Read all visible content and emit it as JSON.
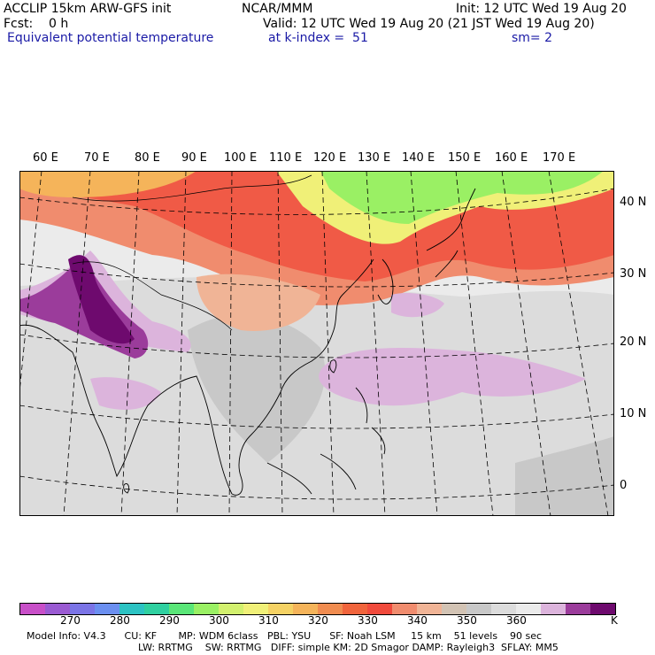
{
  "header": {
    "model": "ACCLIP 15km ARW-GFS init",
    "org": "NCAR/MMM",
    "init": "Init: 12 UTC Wed 19 Aug 20",
    "fcst": "Fcst:    0 h",
    "valid": "Valid: 12 UTC Wed 19 Aug 20 (21 JST Wed 19 Aug 20)",
    "field": "Equivalent potential temperature",
    "level": "at k-index =  51",
    "smooth": "sm= 2"
  },
  "map": {
    "lon_labels": [
      "60 E",
      "70 E",
      "80 E",
      "90 E",
      "100 E",
      "110 E",
      "120 E",
      "130 E",
      "140 E",
      "150 E",
      "160 E",
      "170 E"
    ],
    "lat_labels": [
      "40 N",
      "30 N",
      "20 N",
      "10 N",
      "0"
    ],
    "colors": {
      "frame": "#000000",
      "graticule": "#000000",
      "coast": "#000000"
    }
  },
  "colorbar": {
    "colors": [
      "#c84fc8",
      "#9a5ad2",
      "#7b74e6",
      "#6b8ff0",
      "#2cc3c3",
      "#2fd0a0",
      "#5ae678",
      "#9af064",
      "#d2f06e",
      "#f0f078",
      "#f5d264",
      "#f5b45a",
      "#f08c50",
      "#f0643c",
      "#f04a3c",
      "#f08c6e",
      "#f0b496",
      "#d2c3b4",
      "#c8c8c8",
      "#dcdcdc",
      "#ebebeb",
      "#dcb4dc",
      "#9b3c9b",
      "#6e0a6e"
    ],
    "tick_labels": [
      "270",
      "280",
      "290",
      "300",
      "310",
      "320",
      "330",
      "340",
      "350",
      "360"
    ],
    "unit": "K"
  },
  "footer": {
    "line1": "Model Info: V4.3      CU: KF       MP: WDM 6class   PBL: YSU      SF: Noah LSM     15 km    51 levels    90 sec",
    "line2": "LW: RRTMG    SW: RRTMG   DIFF: simple KM: 2D Smagor DAMP: Rayleigh3  SFLAY: MM5"
  }
}
